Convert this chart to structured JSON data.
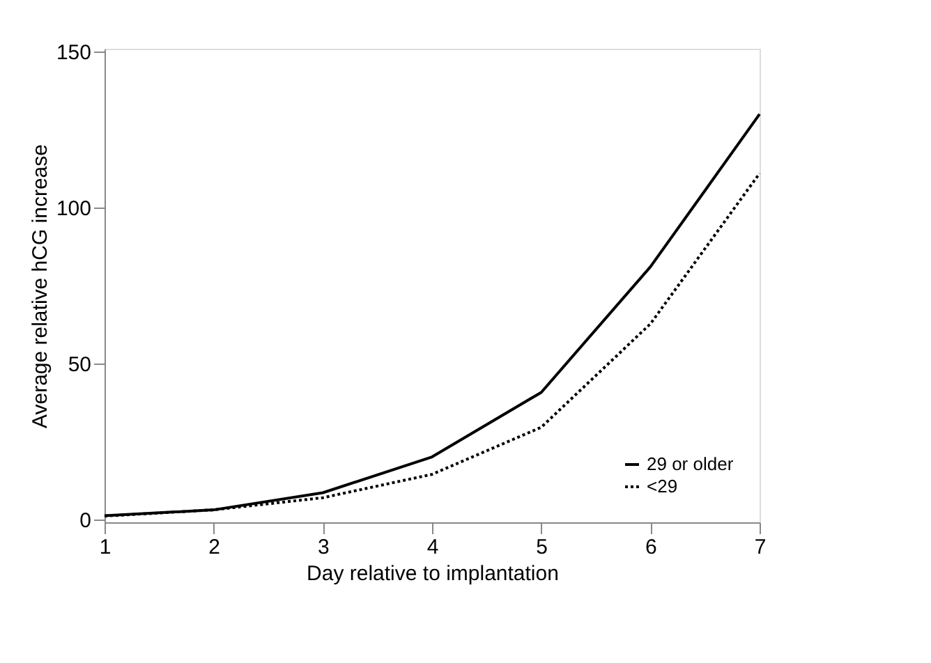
{
  "chart_data": {
    "type": "line",
    "xlabel": "Day relative to implantation",
    "ylabel": "Average relative hCG increase",
    "x": [
      1,
      2,
      3,
      4,
      5,
      6,
      7
    ],
    "series": [
      {
        "name": "29 or older",
        "color": "#000000",
        "line_style": "solid",
        "values": [
          1.1,
          3,
          8.5,
          20,
          40.7,
          81,
          130
        ]
      },
      {
        "name": "<29",
        "color": "#000000",
        "line_style": "dotted",
        "values": [
          1,
          3,
          6.9,
          14.4,
          29.5,
          62.7,
          111
        ]
      }
    ],
    "xlim": [
      1,
      7
    ],
    "xticks": [
      1,
      2,
      3,
      4,
      5,
      6,
      7
    ],
    "ylim": [
      -1,
      151
    ],
    "yticks": [
      0,
      50,
      100,
      150
    ],
    "grid": false,
    "legend": "bottom right",
    "marker": "none"
  }
}
